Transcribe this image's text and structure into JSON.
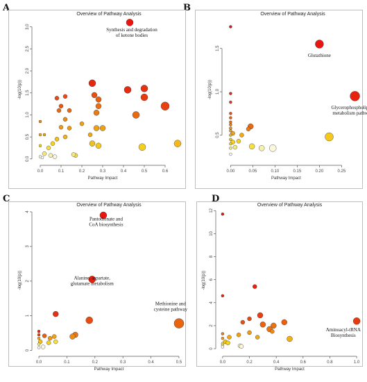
{
  "panels": [
    {
      "letter": "A"
    },
    {
      "letter": "B"
    },
    {
      "letter": "C"
    },
    {
      "letter": "D"
    }
  ],
  "chart_data": [
    {
      "type": "scatter",
      "panel": "A",
      "title": "Overview of Pathway Analysis",
      "xlabel": "Pathway Impact",
      "ylabel": "-log(10(p))",
      "xlim": [
        -0.02,
        0.68
      ],
      "ylim": [
        -0.05,
        3.2
      ],
      "xticks": [
        "0.0",
        "0.1",
        "0.2",
        "0.3",
        "0.4",
        "0.5",
        "0.6"
      ],
      "xtick_values": [
        0,
        0.1,
        0.2,
        0.3,
        0.4,
        0.5,
        0.6
      ],
      "yticks": [
        "0.0",
        "0.5",
        "1.0",
        "1.5",
        "2.0",
        "2.5",
        "3.0"
      ],
      "ytick_values": [
        0,
        0.5,
        1.0,
        1.5,
        2.0,
        2.5,
        3.0
      ],
      "annotations": [
        {
          "lines": [
            "Synthesis and degradation",
            "of ketone bodies"
          ],
          "x": 0.44,
          "y": 2.9
        }
      ],
      "points": [
        {
          "x": 0.43,
          "y": 3.1,
          "r": 5,
          "color": "#e8160e"
        },
        {
          "x": 0.25,
          "y": 1.72,
          "r": 5,
          "color": "#e8260e"
        },
        {
          "x": 0.42,
          "y": 1.57,
          "r": 5,
          "color": "#e82a0e"
        },
        {
          "x": 0.5,
          "y": 1.6,
          "r": 5,
          "color": "#e8300e"
        },
        {
          "x": 0.5,
          "y": 1.4,
          "r": 5,
          "color": "#e8380e"
        },
        {
          "x": 0.6,
          "y": 1.2,
          "r": 6,
          "color": "#e84010"
        },
        {
          "x": 0.26,
          "y": 1.45,
          "r": 4,
          "color": "#e85010"
        },
        {
          "x": 0.28,
          "y": 1.35,
          "r": 4,
          "color": "#e86010"
        },
        {
          "x": 0.28,
          "y": 1.2,
          "r": 4,
          "color": "#ea7010"
        },
        {
          "x": 0.27,
          "y": 1.05,
          "r": 4,
          "color": "#ea7a12"
        },
        {
          "x": 0.46,
          "y": 1.0,
          "r": 5,
          "color": "#ea6a10"
        },
        {
          "x": 0.08,
          "y": 1.38,
          "r": 3,
          "color": "#e84a10"
        },
        {
          "x": 0.12,
          "y": 1.42,
          "r": 3,
          "color": "#e84a10"
        },
        {
          "x": 0.1,
          "y": 1.2,
          "r": 3,
          "color": "#e85810"
        },
        {
          "x": 0.09,
          "y": 1.1,
          "r": 3,
          "color": "#ea6810"
        },
        {
          "x": 0.14,
          "y": 1.1,
          "r": 3,
          "color": "#ea6810"
        },
        {
          "x": 0.12,
          "y": 0.9,
          "r": 3,
          "color": "#ee8a12"
        },
        {
          "x": 0.1,
          "y": 0.72,
          "r": 3,
          "color": "#f09a14"
        },
        {
          "x": 0.14,
          "y": 0.7,
          "r": 3,
          "color": "#f09a14"
        },
        {
          "x": 0.2,
          "y": 0.8,
          "r": 3,
          "color": "#f0a014"
        },
        {
          "x": 0.27,
          "y": 0.7,
          "r": 4,
          "color": "#f0a014"
        },
        {
          "x": 0.3,
          "y": 0.7,
          "r": 4,
          "color": "#f0a014"
        },
        {
          "x": 0.24,
          "y": 0.55,
          "r": 3,
          "color": "#f0a814"
        },
        {
          "x": 0.12,
          "y": 0.5,
          "r": 3,
          "color": "#f2b018"
        },
        {
          "x": 0.08,
          "y": 0.45,
          "r": 3,
          "color": "#f2c01a"
        },
        {
          "x": 0.25,
          "y": 0.35,
          "r": 4,
          "color": "#f2c01a"
        },
        {
          "x": 0.28,
          "y": 0.3,
          "r": 4,
          "color": "#f4c81c"
        },
        {
          "x": 0.49,
          "y": 0.27,
          "r": 5,
          "color": "#f4d01c"
        },
        {
          "x": 0.66,
          "y": 0.35,
          "r": 5,
          "color": "#f2b81c"
        },
        {
          "x": 0.06,
          "y": 0.35,
          "r": 3,
          "color": "#f4d21e"
        },
        {
          "x": 0.04,
          "y": 0.25,
          "r": 3,
          "color": "#f4e040"
        },
        {
          "x": 0.02,
          "y": 0.55,
          "r": 2,
          "color": "#f0a014"
        },
        {
          "x": 0.0,
          "y": 0.85,
          "r": 2,
          "color": "#ee8a12"
        },
        {
          "x": 0.0,
          "y": 0.55,
          "r": 2,
          "color": "#f0a814"
        },
        {
          "x": 0.0,
          "y": 0.3,
          "r": 2,
          "color": "#f4d21e"
        },
        {
          "x": 0.02,
          "y": 0.12,
          "r": 3,
          "color": "#f6e880"
        },
        {
          "x": 0.05,
          "y": 0.08,
          "r": 3,
          "color": "#f8f0b0"
        },
        {
          "x": 0.07,
          "y": 0.05,
          "r": 3,
          "color": "#fcf8e0"
        },
        {
          "x": 0.17,
          "y": 0.08,
          "r": 3,
          "color": "#f4e040"
        },
        {
          "x": 0.16,
          "y": 0.1,
          "r": 3,
          "color": "#f6e880"
        },
        {
          "x": 0.0,
          "y": 0.05,
          "r": 2,
          "color": "#fcf8e0"
        },
        {
          "x": 0.01,
          "y": 0.03,
          "r": 2,
          "color": "#ffffff"
        }
      ]
    },
    {
      "type": "scatter",
      "panel": "B",
      "title": "Overview of Pathway Analysis",
      "xlabel": "Pathway Impact",
      "ylabel": "-log(10(p))",
      "xlim": [
        -0.01,
        0.29
      ],
      "ylim": [
        0.2,
        1.85
      ],
      "xticks": [
        "0.00",
        "0.05",
        "0.10",
        "0.15",
        "0.20",
        "0.25"
      ],
      "xtick_values": [
        0,
        0.05,
        0.1,
        0.15,
        0.2,
        0.25
      ],
      "yticks": [
        "0.5",
        "1.0",
        "1.5"
      ],
      "ytick_values": [
        0.5,
        1.0,
        1.5
      ],
      "annotations": [
        {
          "lines": [
            "Glutathione"
          ],
          "x": 0.2,
          "y": 1.4
        },
        {
          "lines": [
            "Glycerophospholipids",
            "metabolism pathway"
          ],
          "x": 0.275,
          "y": 0.8
        }
      ],
      "points": [
        {
          "x": 0.0,
          "y": 1.75,
          "r": 2,
          "color": "#e8160e"
        },
        {
          "x": 0.2,
          "y": 1.55,
          "r": 6,
          "color": "#e8160e"
        },
        {
          "x": 0.28,
          "y": 0.95,
          "r": 7,
          "color": "#e8200e"
        },
        {
          "x": 0.0,
          "y": 0.98,
          "r": 2,
          "color": "#e8280e"
        },
        {
          "x": 0.0,
          "y": 0.88,
          "r": 2,
          "color": "#e83a10"
        },
        {
          "x": 0.0,
          "y": 0.75,
          "r": 2,
          "color": "#e85010"
        },
        {
          "x": 0.0,
          "y": 0.7,
          "r": 2,
          "color": "#ea6010"
        },
        {
          "x": 0.0,
          "y": 0.65,
          "r": 2,
          "color": "#ea7010"
        },
        {
          "x": 0.0,
          "y": 0.62,
          "r": 2,
          "color": "#ec7a12"
        },
        {
          "x": 0.045,
          "y": 0.6,
          "r": 4,
          "color": "#ea6a10"
        },
        {
          "x": 0.04,
          "y": 0.57,
          "r": 3,
          "color": "#ec7a12"
        },
        {
          "x": 0.0,
          "y": 0.58,
          "r": 2,
          "color": "#ee8a12"
        },
        {
          "x": 0.0,
          "y": 0.55,
          "r": 2,
          "color": "#f09a14"
        },
        {
          "x": 0.005,
          "y": 0.52,
          "r": 3,
          "color": "#f0a014"
        },
        {
          "x": 0.025,
          "y": 0.5,
          "r": 3,
          "color": "#f0a814"
        },
        {
          "x": 0.0,
          "y": 0.5,
          "r": 2,
          "color": "#f2b018"
        },
        {
          "x": 0.0,
          "y": 0.45,
          "r": 2,
          "color": "#f2c01a"
        },
        {
          "x": 0.005,
          "y": 0.42,
          "r": 3,
          "color": "#f4d21e"
        },
        {
          "x": 0.018,
          "y": 0.43,
          "r": 3,
          "color": "#f4d21e"
        },
        {
          "x": 0.0,
          "y": 0.4,
          "r": 2,
          "color": "#f4d21e"
        },
        {
          "x": 0.222,
          "y": 0.48,
          "r": 6,
          "color": "#f4c81c"
        },
        {
          "x": 0.048,
          "y": 0.37,
          "r": 4,
          "color": "#f4e040"
        },
        {
          "x": 0.01,
          "y": 0.36,
          "r": 3,
          "color": "#f6e880"
        },
        {
          "x": 0.0,
          "y": 0.35,
          "r": 2,
          "color": "#f6e880"
        },
        {
          "x": 0.07,
          "y": 0.35,
          "r": 4,
          "color": "#f8f0b0"
        },
        {
          "x": 0.095,
          "y": 0.35,
          "r": 5,
          "color": "#fcf8e0"
        },
        {
          "x": 0.0,
          "y": 0.28,
          "r": 2,
          "color": "#ffffff"
        }
      ]
    },
    {
      "type": "scatter",
      "panel": "C",
      "title": "Overview of Pathway Analysis",
      "xlabel": "Pathway Impact",
      "ylabel": "-log(10(p))",
      "xlim": [
        -0.01,
        0.51
      ],
      "ylim": [
        -0.05,
        4.1
      ],
      "xticks": [
        "0.0",
        "0.1",
        "0.2",
        "0.3",
        "0.4",
        "0.5"
      ],
      "xtick_values": [
        0,
        0.1,
        0.2,
        0.3,
        0.4,
        0.5
      ],
      "yticks": [
        "0",
        "1",
        "2",
        "3",
        "4"
      ],
      "ytick_values": [
        0,
        1,
        2,
        3,
        4
      ],
      "annotations": [
        {
          "lines": [
            "Pantothenate and",
            "CoA biosynthesis"
          ],
          "x": 0.24,
          "y": 3.75
        },
        {
          "lines": [
            "Alanine, aspartate,",
            "glutamate metabolism"
          ],
          "x": 0.19,
          "y": 2.05
        },
        {
          "lines": [
            "Methionine and",
            "cysteine pathway"
          ],
          "x": 0.47,
          "y": 1.3
        }
      ],
      "points": [
        {
          "x": 0.23,
          "y": 3.9,
          "r": 5,
          "color": "#e8160e"
        },
        {
          "x": 0.19,
          "y": 2.05,
          "r": 5,
          "color": "#e8200e"
        },
        {
          "x": 0.06,
          "y": 1.05,
          "r": 4,
          "color": "#e83010"
        },
        {
          "x": 0.18,
          "y": 0.87,
          "r": 5,
          "color": "#e84a10"
        },
        {
          "x": 0.5,
          "y": 0.78,
          "r": 7,
          "color": "#ea6410"
        },
        {
          "x": 0.13,
          "y": 0.45,
          "r": 4,
          "color": "#ec7412"
        },
        {
          "x": 0.12,
          "y": 0.4,
          "r": 4,
          "color": "#ee8a12"
        },
        {
          "x": 0.0,
          "y": 0.55,
          "r": 2,
          "color": "#e8260e"
        },
        {
          "x": 0.0,
          "y": 0.45,
          "r": 2,
          "color": "#e8400e"
        },
        {
          "x": 0.02,
          "y": 0.42,
          "r": 3,
          "color": "#ea6010"
        },
        {
          "x": 0.04,
          "y": 0.35,
          "r": 3,
          "color": "#f09a14"
        },
        {
          "x": 0.055,
          "y": 0.4,
          "r": 3,
          "color": "#f0a014"
        },
        {
          "x": 0.0,
          "y": 0.35,
          "r": 2,
          "color": "#f0a814"
        },
        {
          "x": 0.005,
          "y": 0.25,
          "r": 3,
          "color": "#f2c01a"
        },
        {
          "x": 0.035,
          "y": 0.22,
          "r": 3,
          "color": "#f4d21e"
        },
        {
          "x": 0.06,
          "y": 0.25,
          "r": 3,
          "color": "#f4e040"
        },
        {
          "x": 0.0,
          "y": 0.18,
          "r": 2,
          "color": "#f6e880"
        },
        {
          "x": 0.015,
          "y": 0.1,
          "r": 3,
          "color": "#fcf8e0"
        },
        {
          "x": 0.0,
          "y": 0.08,
          "r": 2,
          "color": "#ffffff"
        }
      ]
    },
    {
      "type": "scatter",
      "panel": "D",
      "title": "Overview of Pathway Analysis",
      "xlabel": "Pathway Impact",
      "ylabel": "-log(10(p))",
      "xlim": [
        -0.02,
        1.02
      ],
      "ylim": [
        -0.3,
        12.2
      ],
      "xticks": [
        "0.0",
        "0.2",
        "0.4",
        "0.6",
        "0.8",
        "1.0"
      ],
      "xtick_values": [
        0,
        0.2,
        0.4,
        0.6,
        0.8,
        1.0
      ],
      "yticks": [
        "0",
        "2",
        "4",
        "6",
        "8",
        "10",
        "12"
      ],
      "ytick_values": [
        0,
        2,
        4,
        6,
        8,
        10,
        12
      ],
      "annotations": [
        {
          "lines": [
            "Aminoacyl-tRNA",
            "Biosynthesis"
          ],
          "x": 0.9,
          "y": 1.5
        }
      ],
      "points": [
        {
          "x": 0.0,
          "y": 11.7,
          "r": 2,
          "color": "#e8160e"
        },
        {
          "x": 0.24,
          "y": 5.4,
          "r": 3,
          "color": "#e8200e"
        },
        {
          "x": 0.0,
          "y": 4.6,
          "r": 2,
          "color": "#e8260e"
        },
        {
          "x": 0.28,
          "y": 2.9,
          "r": 4,
          "color": "#e84010"
        },
        {
          "x": 0.2,
          "y": 2.6,
          "r": 3,
          "color": "#e84a10"
        },
        {
          "x": 0.15,
          "y": 2.3,
          "r": 3,
          "color": "#e85010"
        },
        {
          "x": 0.46,
          "y": 2.3,
          "r": 4,
          "color": "#ea6010"
        },
        {
          "x": 0.3,
          "y": 2.1,
          "r": 4,
          "color": "#ea6410"
        },
        {
          "x": 0.38,
          "y": 2.0,
          "r": 4,
          "color": "#ea7010"
        },
        {
          "x": 1.0,
          "y": 2.4,
          "r": 5,
          "color": "#e83a10"
        },
        {
          "x": 0.35,
          "y": 1.7,
          "r": 4,
          "color": "#ec7412"
        },
        {
          "x": 0.37,
          "y": 1.5,
          "r": 3,
          "color": "#ee8a12"
        },
        {
          "x": 0.2,
          "y": 1.4,
          "r": 3,
          "color": "#f09a14"
        },
        {
          "x": 0.12,
          "y": 1.2,
          "r": 3,
          "color": "#f0a014"
        },
        {
          "x": 0.05,
          "y": 1.0,
          "r": 3,
          "color": "#f0a814"
        },
        {
          "x": 0.26,
          "y": 1.0,
          "r": 3,
          "color": "#f0a814"
        },
        {
          "x": 0.5,
          "y": 0.85,
          "r": 4,
          "color": "#f2b018"
        },
        {
          "x": 0.0,
          "y": 1.3,
          "r": 2,
          "color": "#ee8012"
        },
        {
          "x": 0.0,
          "y": 0.9,
          "r": 2,
          "color": "#f09a14"
        },
        {
          "x": 0.02,
          "y": 0.6,
          "r": 3,
          "color": "#f2c01a"
        },
        {
          "x": 0.04,
          "y": 0.5,
          "r": 3,
          "color": "#f4d21e"
        },
        {
          "x": 0.0,
          "y": 0.45,
          "r": 2,
          "color": "#f4e040"
        },
        {
          "x": 0.0,
          "y": 0.3,
          "r": 2,
          "color": "#f6e880"
        },
        {
          "x": 0.13,
          "y": 0.25,
          "r": 3,
          "color": "#f8f0b0"
        },
        {
          "x": 0.14,
          "y": 0.2,
          "r": 3,
          "color": "#fcf8e0"
        },
        {
          "x": 0.0,
          "y": 0.15,
          "r": 2,
          "color": "#ffffff"
        }
      ]
    }
  ]
}
